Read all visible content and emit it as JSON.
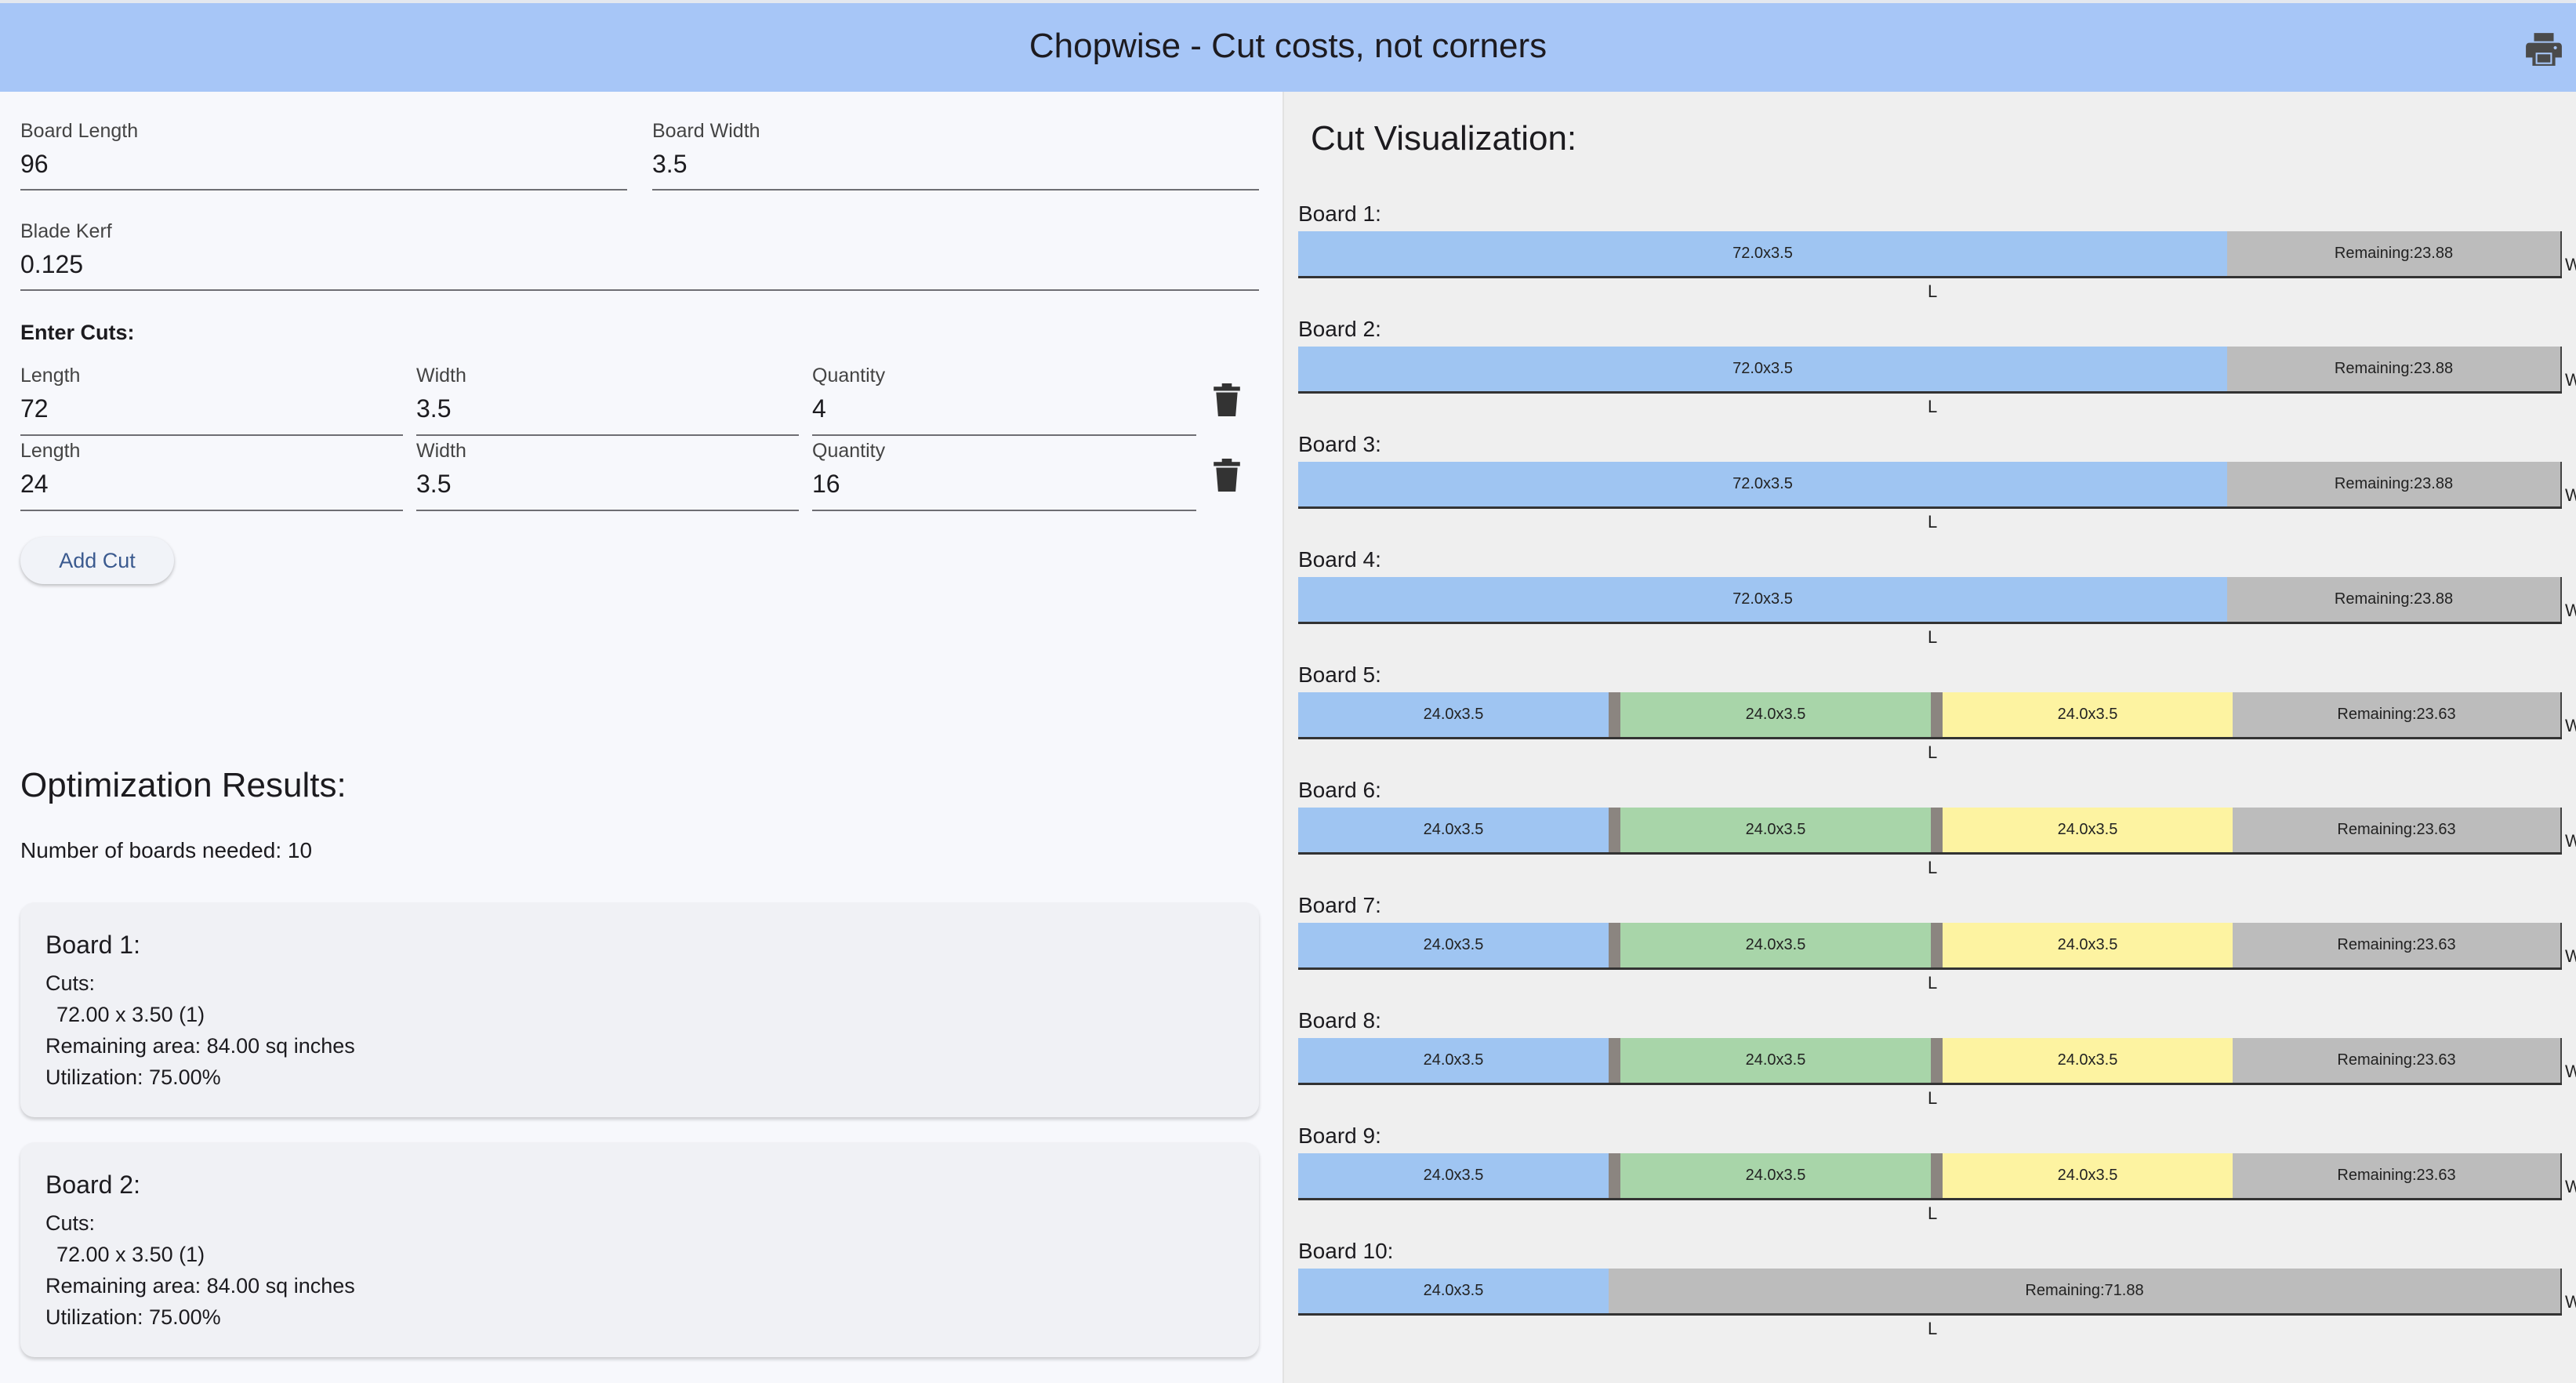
{
  "app": {
    "title": "Chopwise - Cut costs, not corners",
    "print_icon": "print-icon"
  },
  "board": {
    "length_label": "Board Length",
    "length_value": "96",
    "width_label": "Board Width",
    "width_value": "3.5",
    "kerf_label": "Blade Kerf",
    "kerf_value": "0.125"
  },
  "cuts": {
    "heading": "Enter Cuts:",
    "rows": [
      {
        "length_label": "Length",
        "length": "72",
        "width_label": "Width",
        "width": "3.5",
        "qty_label": "Quantity",
        "qty": "4"
      },
      {
        "length_label": "Length",
        "length": "24",
        "width_label": "Width",
        "width": "3.5",
        "qty_label": "Quantity",
        "qty": "16"
      }
    ],
    "add_label": "Add Cut"
  },
  "results": {
    "title": "Optimization Results:",
    "boards_needed": "Number of boards needed: 10",
    "cards": [
      {
        "title": "Board 1:",
        "cuts_label": "Cuts:",
        "cut": "72.00 x 3.50 (1)",
        "remaining": "Remaining area: 84.00 sq inches",
        "utilization": "Utilization: 75.00%"
      },
      {
        "title": "Board 2:",
        "cuts_label": "Cuts:",
        "cut": "72.00 x 3.50 (1)",
        "remaining": "Remaining area: 84.00 sq inches",
        "utilization": "Utilization: 75.00%"
      }
    ]
  },
  "viz": {
    "title": "Cut Visualization:",
    "colors": {
      "blue": "#9fc5f2",
      "green": "#a8d5a9",
      "yellow": "#fdf3a1",
      "kerf": "#8b8580",
      "remaining": "#bcbcbc"
    },
    "edge_v": "W",
    "edge_l": "L",
    "boards": [
      {
        "label": "Board 1:",
        "pieces": [
          {
            "text": "72.0x3.5",
            "color": "blue",
            "len": 72
          }
        ],
        "remaining_label": "Remaining:",
        "remaining": "23.88"
      },
      {
        "label": "Board 2:",
        "pieces": [
          {
            "text": "72.0x3.5",
            "color": "blue",
            "len": 72
          }
        ],
        "remaining_label": "Remaining:",
        "remaining": "23.88"
      },
      {
        "label": "Board 3:",
        "pieces": [
          {
            "text": "72.0x3.5",
            "color": "blue",
            "len": 72
          }
        ],
        "remaining_label": "Remaining:",
        "remaining": "23.88"
      },
      {
        "label": "Board 4:",
        "pieces": [
          {
            "text": "72.0x3.5",
            "color": "blue",
            "len": 72
          }
        ],
        "remaining_label": "Remaining:",
        "remaining": "23.88"
      },
      {
        "label": "Board 5:",
        "pieces": [
          {
            "text": "24.0x3.5",
            "color": "blue",
            "len": 24
          },
          {
            "text": "24.0x3.5",
            "color": "green",
            "len": 24
          },
          {
            "text": "24.0x3.5",
            "color": "yellow",
            "len": 24
          }
        ],
        "remaining_label": "Remaining:",
        "remaining": "23.63"
      },
      {
        "label": "Board 6:",
        "pieces": [
          {
            "text": "24.0x3.5",
            "color": "blue",
            "len": 24
          },
          {
            "text": "24.0x3.5",
            "color": "green",
            "len": 24
          },
          {
            "text": "24.0x3.5",
            "color": "yellow",
            "len": 24
          }
        ],
        "remaining_label": "Remaining:",
        "remaining": "23.63"
      },
      {
        "label": "Board 7:",
        "pieces": [
          {
            "text": "24.0x3.5",
            "color": "blue",
            "len": 24
          },
          {
            "text": "24.0x3.5",
            "color": "green",
            "len": 24
          },
          {
            "text": "24.0x3.5",
            "color": "yellow",
            "len": 24
          }
        ],
        "remaining_label": "Remaining:",
        "remaining": "23.63"
      },
      {
        "label": "Board 8:",
        "pieces": [
          {
            "text": "24.0x3.5",
            "color": "blue",
            "len": 24
          },
          {
            "text": "24.0x3.5",
            "color": "green",
            "len": 24
          },
          {
            "text": "24.0x3.5",
            "color": "yellow",
            "len": 24
          }
        ],
        "remaining_label": "Remaining:",
        "remaining": "23.63"
      },
      {
        "label": "Board 9:",
        "pieces": [
          {
            "text": "24.0x3.5",
            "color": "blue",
            "len": 24
          },
          {
            "text": "24.0x3.5",
            "color": "green",
            "len": 24
          },
          {
            "text": "24.0x3.5",
            "color": "yellow",
            "len": 24
          }
        ],
        "remaining_label": "Remaining:",
        "remaining": "23.63"
      },
      {
        "label": "Board 10:",
        "pieces": [
          {
            "text": "24.0x3.5",
            "color": "blue",
            "len": 24
          }
        ],
        "remaining_label": "Remaining:",
        "remaining": "71.88"
      }
    ]
  }
}
